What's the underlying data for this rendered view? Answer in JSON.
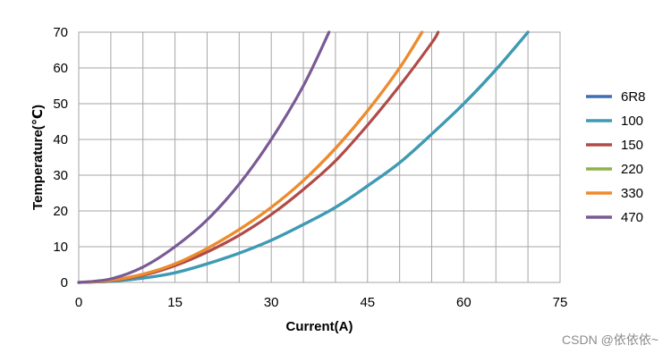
{
  "chart_data": {
    "type": "line",
    "xlabel": "Current(A)",
    "ylabel": "Temperature(℃)",
    "xlim": [
      0,
      75
    ],
    "ylim": [
      0,
      70
    ],
    "x_ticks": [
      0,
      15,
      30,
      45,
      60,
      75
    ],
    "y_ticks": [
      0,
      10,
      20,
      30,
      40,
      50,
      60,
      70
    ],
    "grid": true,
    "legend_position": "right",
    "series": [
      {
        "name": "6R8",
        "color": "#3f6fb0",
        "x": [
          0,
          5,
          10,
          15,
          20,
          25,
          30,
          35,
          40,
          45,
          50,
          55,
          60,
          65,
          70
        ],
        "y": [
          0,
          0.3,
          1.2,
          2.7,
          5.2,
          8.2,
          11.8,
          16.2,
          21.0,
          27.0,
          33.5,
          41.5,
          50.0,
          59.5,
          70.0
        ]
      },
      {
        "name": "100",
        "color": "#3d9bb3",
        "x": [
          0,
          5,
          10,
          15,
          20,
          25,
          30,
          35,
          40,
          45,
          50,
          55,
          60,
          65,
          70
        ],
        "y": [
          0,
          0.3,
          1.2,
          2.7,
          5.2,
          8.2,
          11.8,
          16.2,
          21.0,
          27.0,
          33.5,
          41.5,
          50.0,
          59.5,
          70.0
        ]
      },
      {
        "name": "150",
        "color": "#b04b47",
        "x": [
          0,
          5,
          10,
          15,
          20,
          25,
          30,
          35,
          40,
          45,
          50,
          55,
          56
        ],
        "y": [
          0,
          0.5,
          2.0,
          4.7,
          8.5,
          13.2,
          19.0,
          26.0,
          34.0,
          44.0,
          55.0,
          67.0,
          70.0
        ]
      },
      {
        "name": "220",
        "color": "#8fb04e",
        "x": [
          0,
          5,
          10,
          15,
          20,
          25,
          30,
          35,
          40,
          45,
          50,
          53.5
        ],
        "y": [
          0,
          0.6,
          2.3,
          5.2,
          9.5,
          14.8,
          21.0,
          28.5,
          37.5,
          48.0,
          60.0,
          70.0
        ]
      },
      {
        "name": "330",
        "color": "#f08a2c",
        "x": [
          0,
          5,
          10,
          15,
          20,
          25,
          30,
          35,
          40,
          45,
          50,
          53.5
        ],
        "y": [
          0,
          0.6,
          2.3,
          5.2,
          9.5,
          14.8,
          21.0,
          28.5,
          37.5,
          48.0,
          60.0,
          70.0
        ]
      },
      {
        "name": "470",
        "color": "#7a5a95",
        "x": [
          0,
          5,
          10,
          15,
          20,
          25,
          30,
          35,
          39
        ],
        "y": [
          0,
          1.0,
          4.3,
          10.0,
          17.5,
          27.5,
          40.0,
          55.0,
          70.0
        ]
      }
    ]
  },
  "watermark": "CSDN @依依依~"
}
